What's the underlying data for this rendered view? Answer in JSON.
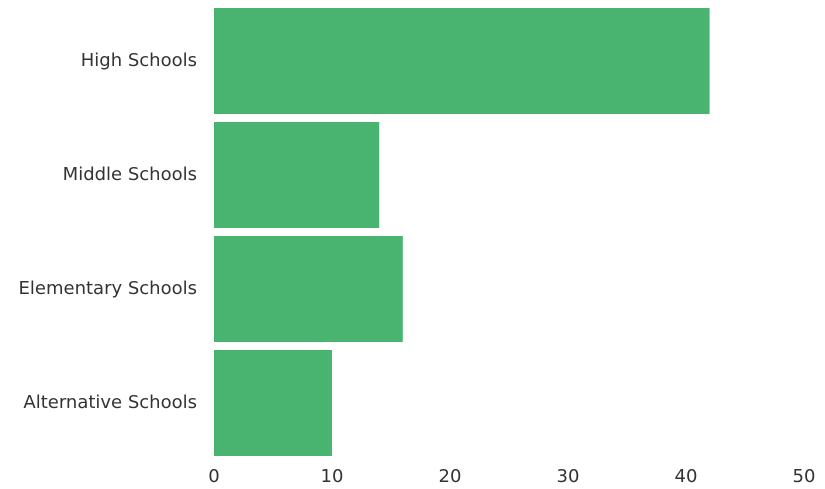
{
  "chart_data": {
    "type": "bar",
    "orientation": "horizontal",
    "categories": [
      "High Schools",
      "Middle Schools",
      "Elementary Schools",
      "Alternative Schools"
    ],
    "values": [
      42,
      14,
      16,
      10
    ],
    "xlim": [
      0,
      50
    ],
    "xticks": [
      "0",
      "10",
      "20",
      "30",
      "40",
      "50"
    ],
    "title": "",
    "xlabel": "",
    "ylabel": "",
    "grid": false,
    "bar_color": "#48b470"
  }
}
